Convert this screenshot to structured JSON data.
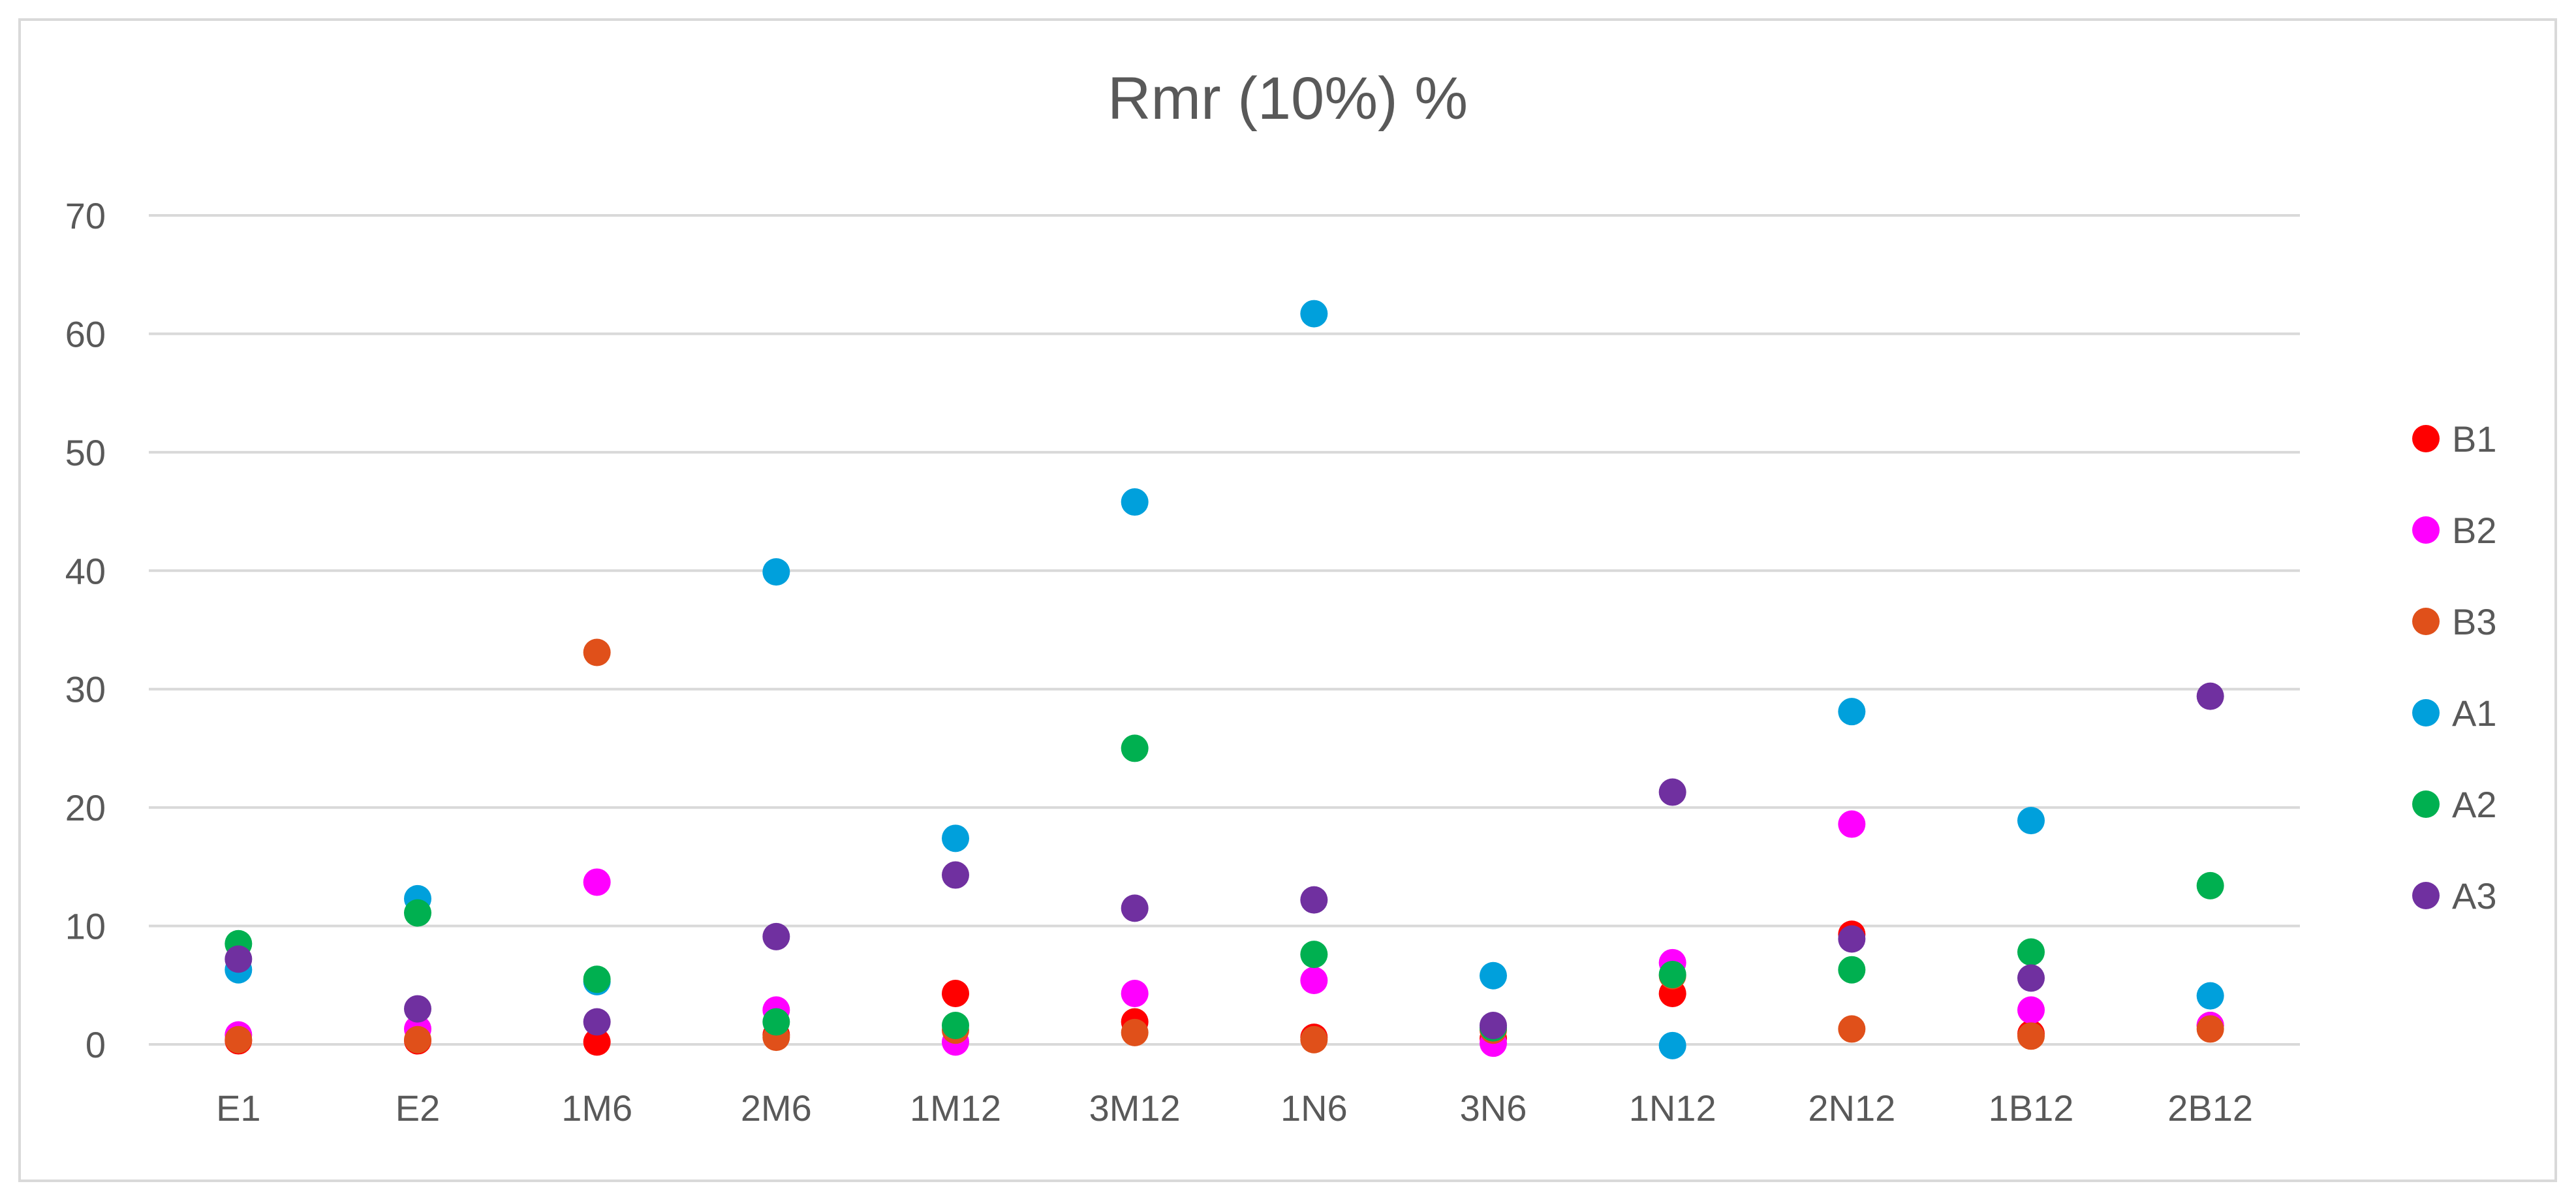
{
  "chart_data": {
    "type": "scatter",
    "title": "Rmr (10%)  %",
    "categories": [
      "E1",
      "E2",
      "1M6",
      "2M6",
      "1M12",
      "3M12",
      "1N6",
      "3N6",
      "1N12",
      "2N12",
      "1B12",
      "2B12"
    ],
    "ylim": [
      0,
      70
    ],
    "yticks": [
      0,
      10,
      20,
      30,
      40,
      50,
      60,
      70
    ],
    "grid": true,
    "legend": "right",
    "series": [
      {
        "name": "B1",
        "color": "#ff0000",
        "values": [
          0.3,
          0.3,
          0.2,
          0.8,
          4.3,
          1.9,
          0.6,
          0.5,
          4.3,
          9.3,
          0.9,
          1.6
        ]
      },
      {
        "name": "B2",
        "color": "#ff00ff",
        "values": [
          0.8,
          1.3,
          13.7,
          2.9,
          0.2,
          4.3,
          5.4,
          0.1,
          6.9,
          18.6,
          2.9,
          1.6
        ]
      },
      {
        "name": "B3",
        "color": "#e0501a",
        "values": [
          0.4,
          0.4,
          33.1,
          0.6,
          1.2,
          1.0,
          0.4,
          1.2,
          5.8,
          1.3,
          0.7,
          1.3
        ]
      },
      {
        "name": "A1",
        "color": "#00a0dc",
        "values": [
          6.3,
          12.3,
          5.3,
          39.9,
          17.4,
          45.8,
          61.7,
          5.8,
          -0.1,
          28.1,
          18.9,
          4.1
        ]
      },
      {
        "name": "A2",
        "color": "#00b050",
        "values": [
          8.5,
          11.1,
          5.5,
          1.9,
          1.6,
          25.0,
          7.6,
          1.4,
          5.9,
          6.3,
          7.8,
          13.4
        ]
      },
      {
        "name": "A3",
        "color": "#7030a0",
        "values": [
          7.2,
          3.0,
          1.9,
          9.1,
          14.3,
          11.5,
          12.2,
          1.6,
          21.3,
          8.9,
          5.6,
          29.4
        ]
      }
    ]
  }
}
